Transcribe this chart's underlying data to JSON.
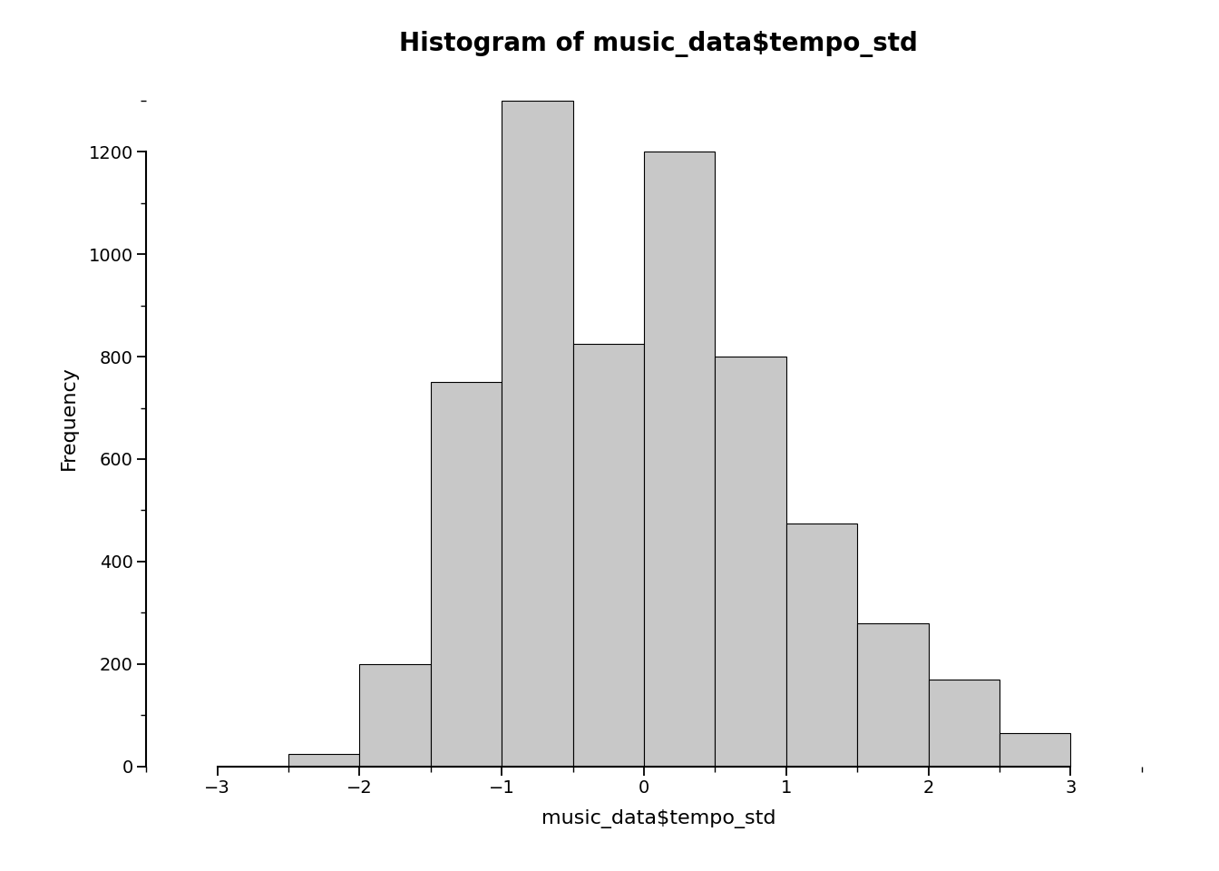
{
  "title": "Histogram of music_data$tempo_std",
  "xlabel": "music_data$tempo_std",
  "ylabel": "Frequency",
  "bar_color": "#c8c8c8",
  "bar_edge_color": "#000000",
  "bar_edge_width": 0.8,
  "background_color": "#ffffff",
  "bin_edges": [
    -3.0,
    -2.5,
    -2.0,
    -1.5,
    -1.0,
    -0.5,
    0.0,
    0.5,
    1.0,
    1.5,
    2.0,
    2.5,
    3.0
  ],
  "frequencies": [
    0,
    25,
    200,
    750,
    1300,
    825,
    1200,
    800,
    475,
    280,
    170,
    65
  ],
  "xlim": [
    -3.5,
    3.7
  ],
  "ylim": [
    0,
    1360
  ],
  "xticks": [
    -3,
    -2,
    -1,
    0,
    1,
    2,
    3
  ],
  "yticks": [
    0,
    200,
    400,
    600,
    800,
    1000,
    1200
  ],
  "title_fontsize": 20,
  "title_fontweight": "bold",
  "axis_label_fontsize": 16,
  "tick_fontsize": 14
}
